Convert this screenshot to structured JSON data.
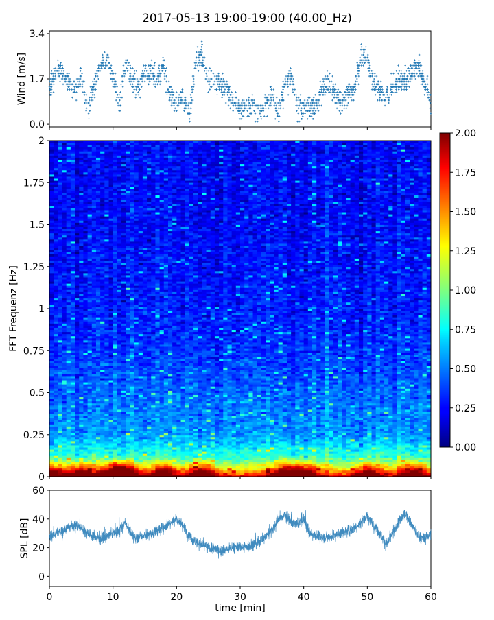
{
  "figure": {
    "title": "2017-05-13 19:00-19:00 (40.00_Hz)"
  },
  "chart_data": [
    {
      "type": "scatter",
      "panel": "wind",
      "ylabel": "Wind [m/s]",
      "xlabel": "",
      "xlim": [
        0,
        60
      ],
      "ylim": [
        -0.1,
        3.5
      ],
      "yticks": [
        0.0,
        1.7,
        3.4
      ],
      "ytick_labels": [
        "0.0",
        "1.7",
        "3.4"
      ],
      "marker_color": "#1f77b4",
      "x": [
        0,
        1,
        2,
        3,
        4,
        5,
        6,
        7,
        8,
        9,
        10,
        11,
        12,
        13,
        14,
        15,
        16,
        17,
        18,
        19,
        20,
        21,
        22,
        23,
        24,
        25,
        26,
        27,
        28,
        29,
        30,
        31,
        32,
        33,
        34,
        35,
        36,
        37,
        38,
        39,
        40,
        41,
        42,
        43,
        44,
        45,
        46,
        47,
        48,
        49,
        50,
        51,
        52,
        53,
        54,
        55,
        56,
        57,
        58,
        59,
        60
      ],
      "y": [
        1.4,
        1.9,
        2.0,
        1.6,
        1.3,
        1.8,
        0.5,
        1.5,
        2.3,
        2.4,
        1.8,
        0.8,
        2.2,
        1.7,
        1.4,
        1.9,
        2.0,
        1.8,
        2.2,
        1.0,
        0.8,
        1.0,
        0.3,
        2.3,
        2.6,
        1.7,
        1.6,
        1.5,
        1.3,
        0.7,
        0.6,
        0.7,
        0.8,
        0.4,
        0.7,
        1.0,
        0.4,
        1.5,
        1.8,
        0.6,
        0.6,
        0.6,
        0.7,
        1.3,
        1.6,
        1.1,
        0.8,
        1.2,
        1.3,
        2.6,
        2.5,
        1.5,
        1.3,
        1.0,
        1.4,
        1.7,
        1.6,
        2.0,
        2.2,
        1.6,
        0.9
      ]
    },
    {
      "type": "heatmap",
      "panel": "spectrogram",
      "ylabel": "FFT Frequenz [Hz]",
      "xlabel": "",
      "xlim": [
        0,
        60
      ],
      "ylim": [
        0,
        2
      ],
      "yticks": [
        0,
        0.25,
        0.5,
        0.75,
        1,
        1.25,
        1.5,
        1.75,
        2
      ],
      "ytick_labels": [
        "0",
        "0.25",
        "0.5",
        "0.75",
        "1",
        "1.25",
        "1.5",
        "1.75",
        "2"
      ],
      "colormap": "jet",
      "colorbar": {
        "vmin": 0.0,
        "vmax": 2.0,
        "ticks": [
          0.0,
          0.25,
          0.5,
          0.75,
          1.0,
          1.25,
          1.5,
          1.75,
          2.0
        ],
        "tick_labels": [
          "0.00",
          "0.25",
          "0.50",
          "0.75",
          "1.00",
          "1.25",
          "1.50",
          "1.75",
          "2.00"
        ]
      },
      "frequency_profile_hz": [
        0.0,
        0.05,
        0.1,
        0.25,
        0.5,
        0.75,
        1.0,
        1.5,
        2.0
      ],
      "typical_value": [
        1.8,
        1.2,
        0.9,
        0.55,
        0.45,
        0.35,
        0.3,
        0.25,
        0.25
      ],
      "time_min_high_activity": [
        0,
        5,
        10,
        12,
        18,
        24,
        37,
        40,
        50,
        57
      ]
    },
    {
      "type": "line",
      "panel": "spl",
      "ylabel": "SPL [dB]",
      "xlabel": "time [min]",
      "xlim": [
        0,
        60
      ],
      "ylim": [
        -7,
        60
      ],
      "yticks": [
        0,
        20,
        40,
        60
      ],
      "ytick_labels": [
        "0",
        "20",
        "40",
        "60"
      ],
      "xticks": [
        0,
        10,
        20,
        30,
        40,
        50,
        60
      ],
      "xtick_labels": [
        "0",
        "10",
        "20",
        "30",
        "40",
        "50",
        "60"
      ],
      "line_color": "#1f77b4",
      "x": [
        0,
        1,
        2,
        3,
        4,
        5,
        6,
        7,
        8,
        9,
        10,
        11,
        12,
        13,
        14,
        15,
        16,
        17,
        18,
        19,
        20,
        21,
        22,
        23,
        24,
        25,
        26,
        27,
        28,
        29,
        30,
        31,
        32,
        33,
        34,
        35,
        36,
        37,
        38,
        39,
        40,
        41,
        42,
        43,
        44,
        45,
        46,
        47,
        48,
        49,
        50,
        51,
        52,
        53,
        54,
        55,
        56,
        57,
        58,
        59,
        60
      ],
      "y": [
        28,
        30,
        32,
        34,
        36,
        34,
        30,
        28,
        26,
        28,
        30,
        32,
        38,
        28,
        27,
        29,
        30,
        32,
        34,
        38,
        40,
        36,
        28,
        24,
        22,
        20,
        19,
        18,
        19,
        20,
        20,
        21,
        22,
        24,
        28,
        32,
        40,
        43,
        38,
        36,
        40,
        30,
        28,
        27,
        28,
        29,
        30,
        32,
        34,
        38,
        42,
        36,
        30,
        22,
        30,
        38,
        44,
        36,
        28,
        26,
        30
      ]
    }
  ]
}
